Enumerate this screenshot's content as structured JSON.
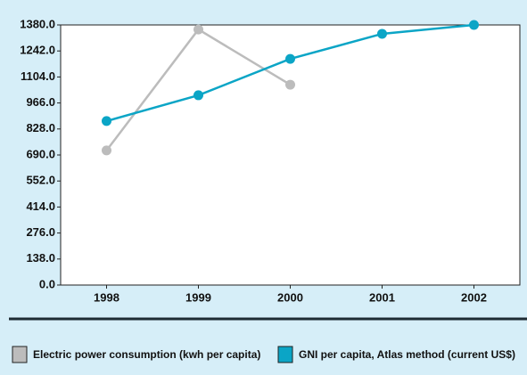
{
  "chart_data": {
    "type": "line",
    "categories": [
      "1998",
      "1999",
      "2000",
      "2001",
      "2002"
    ],
    "series": [
      {
        "name": "Electric power consumption (kwh per capita)",
        "color": "#bcbcbc",
        "values": [
          714,
          1356,
          1063,
          null,
          null
        ]
      },
      {
        "name": "GNI per capita, Atlas method (current US$)",
        "color": "#0ba5c6",
        "values": [
          870,
          1007,
          1200,
          1333,
          1380
        ]
      }
    ],
    "ylim": [
      0,
      1380
    ],
    "yticks": [
      {
        "value": 0,
        "label": "0.0"
      },
      {
        "value": 138,
        "label": "138.0"
      },
      {
        "value": 276,
        "label": "276.0"
      },
      {
        "value": 414,
        "label": "414.0"
      },
      {
        "value": 552,
        "label": "552.0"
      },
      {
        "value": 690,
        "label": "690.0"
      },
      {
        "value": 828,
        "label": "828.0"
      },
      {
        "value": 966,
        "label": "966.0"
      },
      {
        "value": 1104,
        "label": "1104.0"
      },
      {
        "value": 1242,
        "label": "1242.0"
      },
      {
        "value": 1380,
        "label": "1380.0"
      }
    ],
    "grid": false
  }
}
